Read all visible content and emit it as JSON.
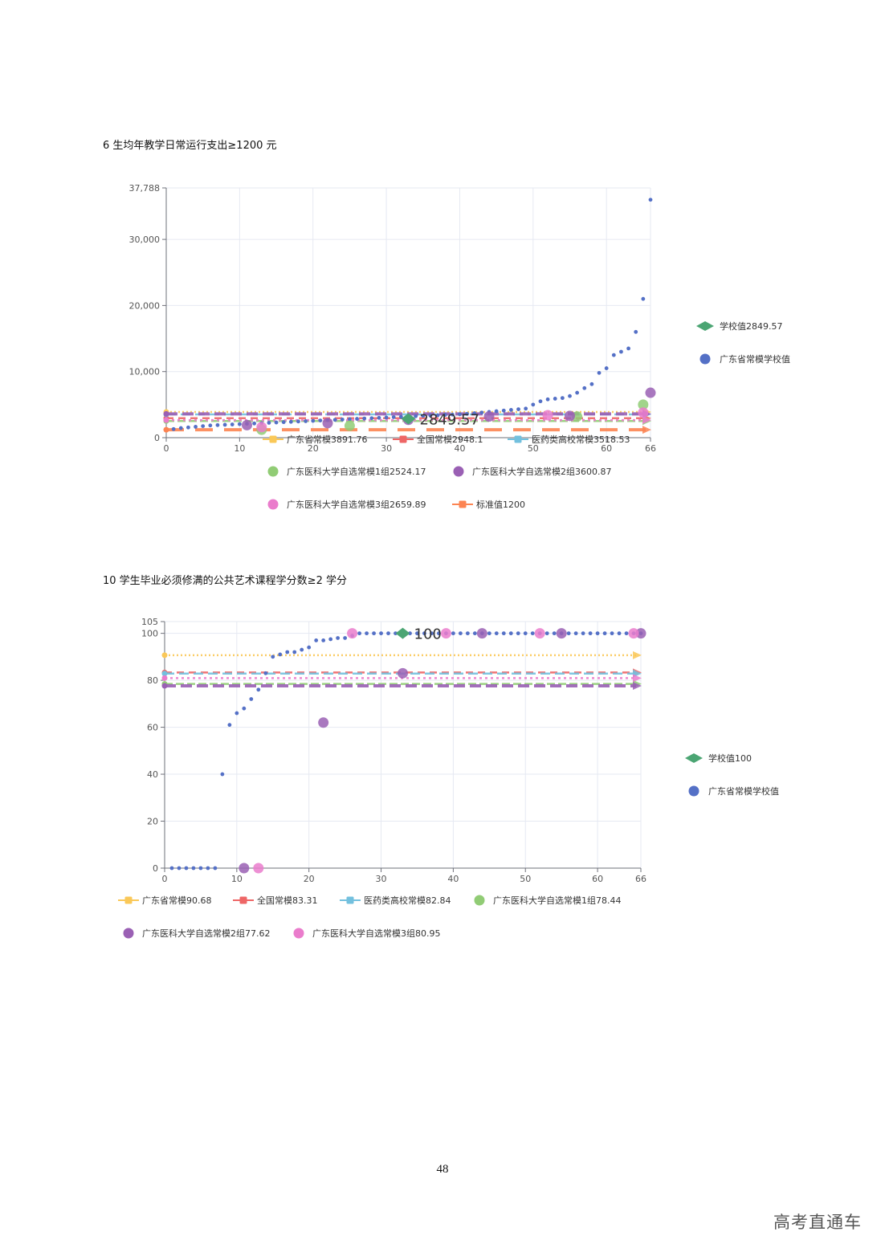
{
  "headings": {
    "chart1": "6 生均年教学日常运行支出≥1200 元",
    "chart2": "10 学生毕业必须修满的公共艺术课程学分数≥2 学分"
  },
  "page_number": "48",
  "watermark": "高考直通车",
  "chart_data": [
    {
      "type": "scatter",
      "title": "",
      "xlabel": "",
      "ylabel": "",
      "xlim": [
        0,
        66
      ],
      "ylim": [
        0,
        37788
      ],
      "x_ticks": [
        "0",
        "10",
        "20",
        "30",
        "40",
        "50",
        "60",
        "66"
      ],
      "y_ticks": [
        {
          "value": 0,
          "label": "0"
        },
        {
          "value": 10000,
          "label": "10,000"
        },
        {
          "value": 20000,
          "label": "20,000"
        },
        {
          "value": 30000,
          "label": "30,000"
        },
        {
          "value": 37788,
          "label": "37,788"
        }
      ],
      "grid": true,
      "school": {
        "name": "学校值2849.57",
        "x": 33,
        "y": 2849.57,
        "label": "2849.57",
        "color": "#4ba573"
      },
      "province_points": {
        "name": "广东省常模学校值",
        "color": "#5470c6",
        "x": [
          1,
          2,
          3,
          4,
          5,
          6,
          7,
          8,
          9,
          10,
          11,
          12,
          13,
          14,
          15,
          16,
          17,
          18,
          19,
          20,
          21,
          22,
          23,
          24,
          25,
          26,
          27,
          28,
          29,
          30,
          31,
          32,
          33,
          34,
          35,
          36,
          37,
          38,
          39,
          40,
          41,
          42,
          43,
          44,
          45,
          46,
          47,
          48,
          49,
          50,
          51,
          52,
          53,
          54,
          55,
          56,
          57,
          58,
          59,
          60,
          61,
          62,
          63,
          64,
          65,
          66
        ],
        "y": [
          1300,
          1450,
          1550,
          1650,
          1750,
          1850,
          1900,
          1950,
          2000,
          2050,
          2100,
          2150,
          2200,
          2250,
          2300,
          2350,
          2400,
          2450,
          2500,
          2550,
          2600,
          2650,
          2700,
          2750,
          2800,
          2850,
          2900,
          2950,
          3000,
          3050,
          3100,
          3150,
          3200,
          3250,
          3300,
          3350,
          3400,
          3450,
          3500,
          3550,
          3600,
          3700,
          3800,
          3900,
          4000,
          4100,
          4200,
          4300,
          4400,
          5000,
          5500,
          5800,
          5900,
          6000,
          6300,
          6800,
          7500,
          8100,
          9800,
          10500,
          12500,
          13000,
          13500,
          16000,
          21000,
          36000
        ]
      },
      "series_marks": [
        {
          "name": "广东医科大学自选常模1组",
          "color": "#91cc75",
          "x": [
            13,
            25,
            56,
            65
          ],
          "y": [
            1200,
            1800,
            3200,
            5000
          ]
        },
        {
          "name": "广东医科大学自选常模2组",
          "color": "#9a60b4",
          "x": [
            11,
            22,
            33,
            44,
            55,
            66
          ],
          "y": [
            1900,
            2200,
            2700,
            3200,
            3300,
            6800
          ]
        },
        {
          "name": "广东医科大学自选常模3组",
          "color": "#ea7ccc",
          "x": [
            13,
            52,
            65
          ],
          "y": [
            1600,
            3400,
            3800
          ]
        }
      ],
      "reference_lines": [
        {
          "name": "广东省常模3891.76",
          "value": 3891.76,
          "color": "#fac858",
          "dash": "2,3",
          "marker": "square"
        },
        {
          "name": "全国常模2948.1",
          "value": 2948.1,
          "color": "#ee6666",
          "dash": "9,6",
          "marker": "square"
        },
        {
          "name": "医药类高校常模3518.53",
          "value": 3518.53,
          "color": "#73c0de",
          "dash": "12,6",
          "marker": "square"
        },
        {
          "name": "广东医科大学自选常模1组2524.17",
          "value": 2524.17,
          "color": "#91cc75",
          "dash": "10,4",
          "marker": "circle"
        },
        {
          "name": "广东医科大学自选常模2组3600.87",
          "value": 3600.87,
          "color": "#9a60b4",
          "dash": "14,6",
          "marker": "circle"
        },
        {
          "name": "广东医科大学自选常模3组2659.89",
          "value": 2659.89,
          "color": "#ea7ccc",
          "dash": "3,4",
          "marker": "circle"
        },
        {
          "name": "标准值1200",
          "value": 1200,
          "color": "#fc8452",
          "dash": "22,14",
          "marker": "square"
        }
      ],
      "legend_side": [
        "学校值2849.57",
        "广东省常模学校值"
      ],
      "legend_placement": "right and bottom"
    },
    {
      "type": "scatter",
      "title": "",
      "xlabel": "",
      "ylabel": "",
      "xlim": [
        0,
        66
      ],
      "ylim": [
        0,
        105
      ],
      "x_ticks": [
        "0",
        "10",
        "20",
        "30",
        "40",
        "50",
        "60",
        "66"
      ],
      "y_ticks": [
        {
          "value": 0,
          "label": "0"
        },
        {
          "value": 20,
          "label": "20"
        },
        {
          "value": 40,
          "label": "40"
        },
        {
          "value": 60,
          "label": "60"
        },
        {
          "value": 80,
          "label": "80"
        },
        {
          "value": 100,
          "label": "100"
        },
        {
          "value": 105,
          "label": "105"
        }
      ],
      "grid": true,
      "school": {
        "name": "学校值100",
        "x": 33,
        "y": 100,
        "label": "100",
        "color": "#4ba573"
      },
      "province_points": {
        "name": "广东省常模学校值",
        "color": "#5470c6",
        "x": [
          1,
          2,
          3,
          4,
          5,
          6,
          7,
          8,
          9,
          10,
          11,
          12,
          13,
          14,
          15,
          16,
          17,
          18,
          19,
          20,
          21,
          22,
          23,
          24,
          25,
          26,
          27,
          28,
          29,
          30,
          31,
          32,
          33,
          34,
          35,
          36,
          37,
          38,
          39,
          40,
          41,
          42,
          43,
          44,
          45,
          46,
          47,
          48,
          49,
          50,
          51,
          52,
          53,
          54,
          55,
          56,
          57,
          58,
          59,
          60,
          61,
          62,
          63,
          64,
          65,
          66
        ],
        "y": [
          0,
          0,
          0,
          0,
          0,
          0,
          0,
          40,
          61,
          66,
          68,
          72,
          76,
          83,
          90,
          91,
          92,
          92,
          93,
          94,
          97,
          97,
          97.5,
          98,
          98,
          99,
          100,
          100,
          100,
          100,
          100,
          100,
          100,
          100,
          100,
          100,
          100,
          100,
          100,
          100,
          100,
          100,
          100,
          100,
          100,
          100,
          100,
          100,
          100,
          100,
          100,
          100,
          100,
          100,
          100,
          100,
          100,
          100,
          100,
          100,
          100,
          100,
          100,
          100,
          100,
          100
        ]
      },
      "series_marks": [
        {
          "name": "广东医科大学自选常模2组",
          "color": "#9a60b4",
          "x": [
            11,
            22,
            33,
            44,
            55,
            66
          ],
          "y": [
            0,
            62,
            83,
            100,
            100,
            100
          ]
        },
        {
          "name": "广东医科大学自选常模3组",
          "color": "#ea7ccc",
          "x": [
            13,
            26,
            39,
            52,
            65
          ],
          "y": [
            0,
            100,
            100,
            100,
            100
          ]
        }
      ],
      "reference_lines": [
        {
          "name": "广东省常模90.68",
          "value": 90.68,
          "color": "#fac858",
          "dash": "2,3",
          "marker": "square"
        },
        {
          "name": "全国常模83.31",
          "value": 83.31,
          "color": "#ee6666",
          "dash": "9,6",
          "marker": "square"
        },
        {
          "name": "医药类高校常模82.84",
          "value": 82.84,
          "color": "#73c0de",
          "dash": "12,6",
          "marker": "square"
        },
        {
          "name": "广东医科大学自选常模1组78.44",
          "value": 78.44,
          "color": "#91cc75",
          "dash": "10,4",
          "marker": "circle"
        },
        {
          "name": "广东医科大学自选常模2组77.62",
          "value": 77.62,
          "color": "#9a60b4",
          "dash": "14,6",
          "marker": "circle"
        },
        {
          "name": "广东医科大学自选常模3组80.95",
          "value": 80.95,
          "color": "#ea7ccc",
          "dash": "3,4",
          "marker": "circle"
        }
      ],
      "legend_side": [
        "学校值100",
        "广东省常模学校值"
      ],
      "legend_placement": "right and bottom"
    }
  ]
}
